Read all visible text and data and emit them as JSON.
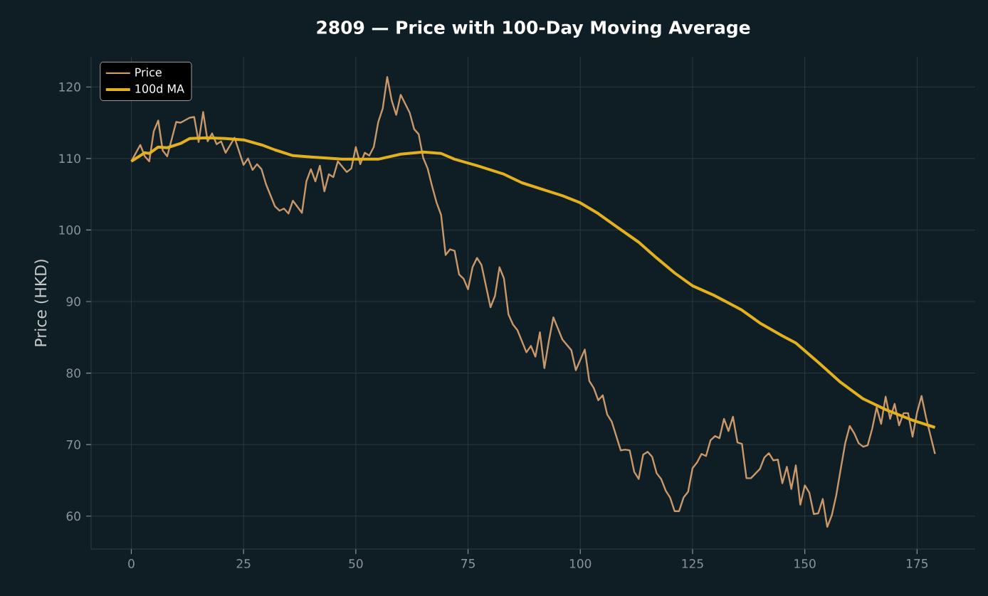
{
  "chart_data": {
    "type": "line",
    "title": "2809 — Price with 100-Day Moving Average",
    "ylabel": "Price (HKD)",
    "xlim": [
      -8.95,
      187.95
    ],
    "ylim": [
      55.4,
      124.2
    ],
    "xticks": [
      0,
      25,
      50,
      75,
      100,
      125,
      150,
      175
    ],
    "yticks": [
      60,
      70,
      80,
      90,
      100,
      110,
      120
    ],
    "grid": true,
    "legend": "top left",
    "marker": "none",
    "line_style": "solid",
    "series": [
      {
        "name": "Price",
        "color": "#c9996b",
        "x": [
          0,
          2,
          3,
          4,
          5,
          6,
          7,
          8,
          10,
          11,
          13,
          14,
          15,
          16,
          17,
          18,
          19,
          20,
          21,
          23,
          25,
          26,
          27,
          28,
          29,
          30,
          32,
          33,
          34,
          35,
          36,
          38,
          39,
          40,
          41,
          42,
          43,
          44,
          45,
          46,
          48,
          49,
          50,
          51,
          52,
          53,
          54,
          55,
          56,
          57,
          58,
          59,
          60,
          62,
          63,
          64,
          65,
          66,
          67,
          68,
          69,
          70,
          71,
          72,
          73,
          74,
          75,
          76,
          77,
          78,
          80,
          81,
          82,
          83,
          84,
          85,
          86,
          88,
          89,
          90,
          91,
          92,
          93,
          94,
          96,
          98,
          99,
          101,
          102,
          103,
          104,
          105,
          106,
          107,
          109,
          110,
          111,
          112,
          113,
          114,
          115,
          116,
          117,
          118,
          119,
          120,
          121,
          122,
          123,
          124,
          125,
          126,
          127,
          128,
          129,
          130,
          131,
          132,
          133,
          134,
          135,
          136,
          137,
          138,
          140,
          141,
          142,
          143,
          144,
          145,
          146,
          147,
          148,
          149,
          150,
          151,
          152,
          153,
          154,
          155,
          156,
          157,
          158,
          159,
          160,
          161,
          162,
          163,
          164,
          165,
          166,
          167,
          168,
          169,
          170,
          171,
          172,
          173,
          174,
          175,
          176,
          177,
          179
        ],
        "values": [
          109.6,
          111.9,
          110.3,
          109.6,
          113.8,
          115.3,
          111.1,
          110.3,
          115.1,
          115.0,
          115.7,
          115.8,
          112.3,
          116.5,
          112.4,
          113.5,
          112.0,
          112.4,
          110.8,
          112.9,
          109.1,
          110.0,
          108.4,
          109.2,
          108.5,
          106.4,
          103.3,
          102.7,
          103.0,
          102.3,
          104.1,
          102.4,
          106.8,
          108.5,
          106.8,
          109.0,
          105.4,
          107.8,
          107.4,
          109.6,
          108.1,
          108.6,
          111.6,
          109.2,
          110.8,
          110.4,
          111.6,
          115.1,
          117.0,
          121.4,
          118.1,
          116.1,
          118.9,
          116.4,
          114.1,
          113.4,
          110.1,
          108.6,
          106.1,
          103.8,
          102.1,
          96.5,
          97.3,
          97.1,
          93.8,
          93.2,
          91.7,
          94.8,
          96.1,
          95.1,
          89.2,
          90.8,
          94.8,
          93.2,
          88.2,
          86.8,
          86.0,
          82.9,
          83.8,
          82.3,
          85.7,
          80.7,
          84.5,
          87.8,
          84.7,
          83.2,
          80.4,
          83.3,
          78.9,
          77.9,
          76.2,
          76.9,
          74.2,
          73.2,
          69.2,
          69.3,
          69.2,
          66.2,
          65.2,
          68.6,
          69.0,
          68.3,
          66.0,
          65.2,
          63.6,
          62.6,
          60.7,
          60.7,
          62.6,
          63.4,
          66.7,
          67.5,
          68.7,
          68.4,
          70.6,
          71.2,
          70.9,
          73.6,
          71.9,
          73.9,
          70.3,
          70.1,
          65.3,
          65.3,
          66.6,
          68.2,
          68.8,
          67.8,
          67.9,
          64.6,
          66.9,
          63.8,
          67.1,
          61.6,
          64.3,
          63.3,
          60.3,
          60.4,
          62.4,
          58.5,
          60.1,
          62.9,
          66.6,
          70.2,
          72.6,
          71.6,
          70.2,
          69.7,
          69.9,
          72.2,
          75.2,
          72.9,
          76.7,
          73.6,
          75.7,
          72.7,
          74.4,
          74.4,
          71.1,
          74.5,
          76.8,
          73.8,
          68.7
        ]
      },
      {
        "name": "100d MA",
        "color": "#e3b11e",
        "x": [
          0,
          3,
          4,
          6,
          8,
          11,
          13,
          17,
          21,
          25,
          29,
          32,
          36,
          40,
          47,
          55,
          60,
          65,
          69,
          72,
          77,
          83,
          87,
          92,
          96,
          100,
          104,
          108,
          113,
          117,
          121,
          125,
          130,
          136,
          140,
          145,
          148,
          153,
          158,
          163,
          168,
          174,
          179
        ],
        "values": [
          109.6,
          110.8,
          110.7,
          111.6,
          111.5,
          112.1,
          112.8,
          112.9,
          112.8,
          112.6,
          111.9,
          111.2,
          110.4,
          110.2,
          109.9,
          109.9,
          110.6,
          110.9,
          110.7,
          109.9,
          109.0,
          107.8,
          106.6,
          105.6,
          104.8,
          103.8,
          102.3,
          100.5,
          98.3,
          96.1,
          94.0,
          92.2,
          90.8,
          88.8,
          87.0,
          85.2,
          84.2,
          81.5,
          78.7,
          76.4,
          74.9,
          73.4,
          72.4
        ]
      }
    ]
  }
}
